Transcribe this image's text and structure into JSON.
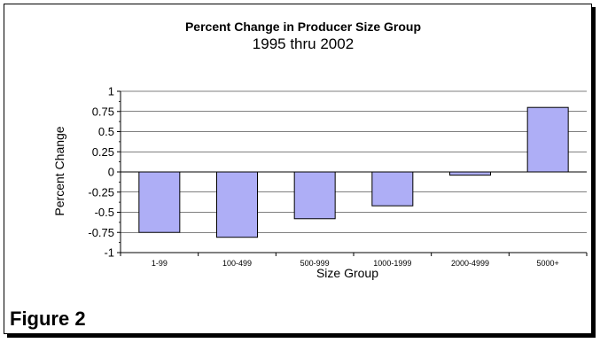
{
  "chart_data": {
    "type": "bar",
    "title": "Percent Change in Producer Size Group",
    "subtitle": "1995 thru 2002",
    "xlabel": "Size Group",
    "ylabel": "Percent Change",
    "categories": [
      "1-99",
      "100-499",
      "500-999",
      "1000-1999",
      "2000-4999",
      "5000+"
    ],
    "values": [
      -0.75,
      -0.81,
      -0.58,
      -0.42,
      -0.04,
      0.8
    ],
    "ylim": [
      -1,
      1
    ],
    "yticks": [
      1,
      0.75,
      0.5,
      0.25,
      0,
      -0.25,
      -0.5,
      -0.75,
      -1
    ],
    "ytick_labels": [
      "1",
      "0.75",
      "0.5",
      "0.25",
      "0",
      "-0.25",
      "-0.5",
      "-0.75",
      "-1"
    ],
    "grid": true,
    "bar_color": "#aeaef6",
    "bar_stroke": "#000000"
  },
  "figure_label": "Figure 2"
}
